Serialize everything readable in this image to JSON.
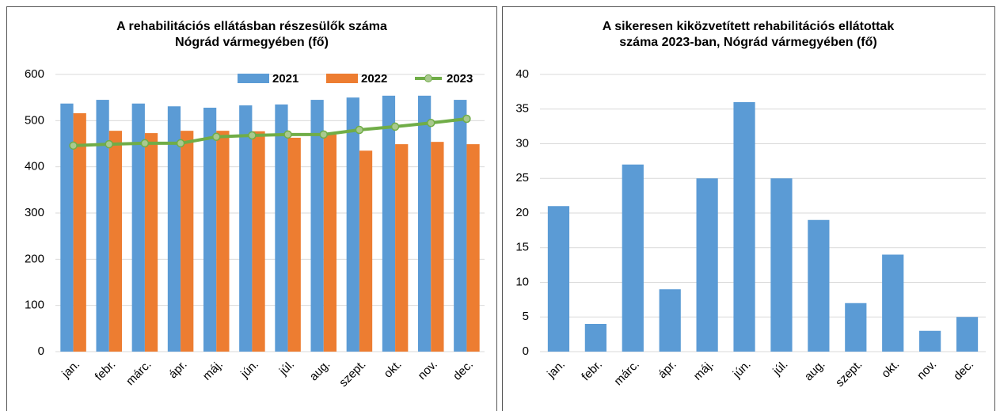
{
  "chart_data": [
    {
      "type": "combo",
      "title": [
        "A rehabilitációs ellátásban részesülők száma",
        "Nógrád vármegyében (fő)"
      ],
      "categories": [
        "jan.",
        "febr.",
        "márc.",
        "ápr.",
        "máj.",
        "jún.",
        "júl.",
        "aug.",
        "szept.",
        "okt.",
        "nov.",
        "dec."
      ],
      "series": [
        {
          "name": "2021",
          "type": "bar",
          "color": "#5b9bd5",
          "values": [
            537,
            545,
            537,
            531,
            528,
            533,
            535,
            545,
            550,
            554,
            554,
            545
          ]
        },
        {
          "name": "2022",
          "type": "bar",
          "color": "#ed7d31",
          "values": [
            516,
            478,
            473,
            478,
            478,
            477,
            463,
            470,
            435,
            449,
            454,
            449
          ]
        },
        {
          "name": "2023",
          "type": "line",
          "color": "#70ad47",
          "values": [
            446,
            449,
            451,
            451,
            465,
            468,
            470,
            470,
            480,
            487,
            495,
            504
          ]
        }
      ],
      "ylim": [
        0,
        600
      ],
      "yticks": [
        0,
        100,
        200,
        300,
        400,
        500,
        600
      ],
      "grid": true,
      "legend": "top-right"
    },
    {
      "type": "bar",
      "title": [
        "A sikeresen kiközvetített rehabilitációs ellátottak",
        "száma 2023-ban, Nógrád vármegyében (fő)"
      ],
      "categories": [
        "jan.",
        "febr.",
        "márc.",
        "ápr.",
        "máj.",
        "jún.",
        "júl.",
        "aug.",
        "szept.",
        "okt.",
        "nov.",
        "dec."
      ],
      "values": [
        21,
        4,
        27,
        9,
        25,
        36,
        25,
        19,
        7,
        14,
        3,
        5
      ],
      "color": "#5b9bd5",
      "ylim": [
        0,
        40
      ],
      "yticks": [
        0,
        5,
        10,
        15,
        20,
        25,
        30,
        35,
        40
      ],
      "grid": true
    }
  ]
}
